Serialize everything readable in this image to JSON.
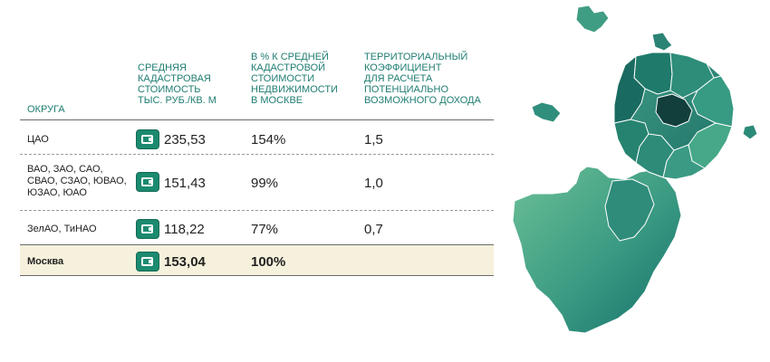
{
  "headers": {
    "district": "ОКРУГА",
    "avg_cost": "СРЕДНЯЯ\nКАДАСТРОВАЯ\nСТОИМОСТЬ\nтыс. руб./кв. м",
    "percent": "В % К СРЕДНЕЙ\nКАДАСТРОВОЙ\nСТОИМОСТИ\nНЕДВИЖИМОСТИ\nВ МОСКВЕ",
    "coef": "ТЕРРИТОРИАЛЬНЫЙ\nКОЭФФИЦИЕНТ\nДЛЯ РАСЧЕТА\nПОТЕНЦИАЛЬНО\nВОЗМОЖНОГО ДОХОДА"
  },
  "rows": [
    {
      "district": "ЦАО",
      "cost": "235,53",
      "percent": "154%",
      "coef": "1,5"
    },
    {
      "district": "ВАО, ЗАО, САО,\nСВАО, СЗАО, ЮВАО,\nЮЗАО, ЮАО",
      "cost": "151,43",
      "percent": "99%",
      "coef": "1,0"
    },
    {
      "district": "ЗелАО, ТиНАО",
      "cost": "118,22",
      "percent": "77%",
      "coef": "0,7"
    }
  ],
  "total": {
    "district": "Москва",
    "cost": "153,04",
    "percent": "100%"
  },
  "icons": {
    "row_icon": "wallet-icon"
  },
  "colors": {
    "header_text": "#1f7d72",
    "total_background": "#f6f1dc",
    "map_light": "#5fb394",
    "map_dark": "#17675f"
  }
}
